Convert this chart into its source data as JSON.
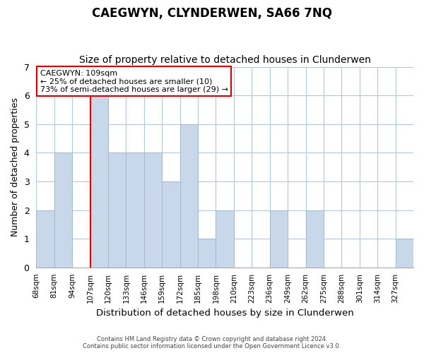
{
  "title": "CAEGWYN, CLYNDERWEN, SA66 7NQ",
  "subtitle": "Size of property relative to detached houses in Clunderwen",
  "xlabel": "Distribution of detached houses by size in Clunderwen",
  "ylabel": "Number of detached properties",
  "footer_lines": [
    "Contains HM Land Registry data © Crown copyright and database right 2024.",
    "Contains public sector information licensed under the Open Government Licence v3.0."
  ],
  "bin_labels": [
    "68sqm",
    "81sqm",
    "94sqm",
    "107sqm",
    "120sqm",
    "133sqm",
    "146sqm",
    "159sqm",
    "172sqm",
    "185sqm",
    "198sqm",
    "210sqm",
    "223sqm",
    "236sqm",
    "249sqm",
    "262sqm",
    "275sqm",
    "288sqm",
    "301sqm",
    "314sqm",
    "327sqm"
  ],
  "bar_values": [
    2,
    4,
    0,
    6,
    4,
    4,
    4,
    3,
    5,
    1,
    2,
    0,
    0,
    2,
    0,
    2,
    0,
    0,
    0,
    0,
    1
  ],
  "bar_color": "#c8d8ea",
  "bar_edge_color": "#a0b8cc",
  "red_line_index": 3,
  "red_line_color": "#cc0000",
  "annotation_text": "CAEGWYN: 109sqm\n← 25% of detached houses are smaller (10)\n73% of semi-detached houses are larger (29) →",
  "annotation_box_color": "#ffffff",
  "annotation_box_edge_color": "#cc0000",
  "ylim": [
    0,
    7
  ],
  "yticks": [
    0,
    1,
    2,
    3,
    4,
    5,
    6,
    7
  ],
  "background_color": "#ffffff",
  "grid_color": "#b0c8dc",
  "title_fontsize": 12,
  "subtitle_fontsize": 10,
  "xlabel_fontsize": 9.5,
  "ylabel_fontsize": 9
}
